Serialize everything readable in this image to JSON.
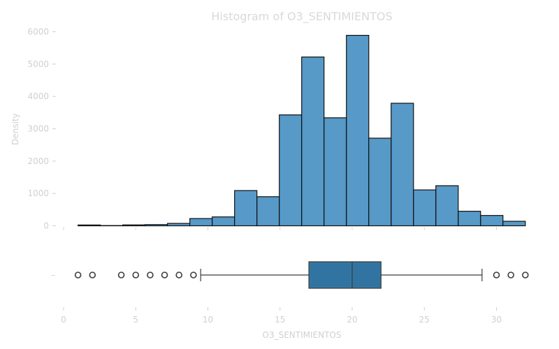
{
  "title": "Histogram of O3_SENTIMIENTOS",
  "chart_data": [
    {
      "type": "histogram",
      "ylabel": "Density",
      "ylim": [
        0,
        6300
      ],
      "yticks": [
        0,
        1000,
        2000,
        3000,
        4000,
        5000,
        6000
      ],
      "bin_edges": [
        1.0,
        2.55,
        4.1,
        5.65,
        7.2,
        8.75,
        10.3,
        11.85,
        13.4,
        14.95,
        16.5,
        18.05,
        19.6,
        21.15,
        22.7,
        24.25,
        25.8,
        27.35,
        28.9,
        30.45,
        32.0
      ],
      "values": [
        25,
        8,
        28,
        38,
        75,
        225,
        275,
        1090,
        900,
        3430,
        5220,
        3340,
        5890,
        2710,
        3790,
        1110,
        1240,
        450,
        320,
        140
      ],
      "grid": false,
      "grid_label": "off"
    },
    {
      "type": "box",
      "xlabel": "O3_SENTIMIENTOS",
      "xlim": [
        0,
        32
      ],
      "xticks": [
        0,
        5,
        10,
        15,
        20,
        25,
        30
      ],
      "q1": 17,
      "median": 20,
      "q3": 22,
      "whisker_low": 9.5,
      "whisker_high": 29,
      "outliers": [
        1,
        2,
        4,
        5,
        6,
        7,
        8,
        9,
        30,
        31,
        32
      ],
      "ytick_label": "–"
    }
  ],
  "colors": {
    "bar_fill": "#5799c7",
    "box_fill": "#3274a1",
    "edge": "#111111"
  }
}
